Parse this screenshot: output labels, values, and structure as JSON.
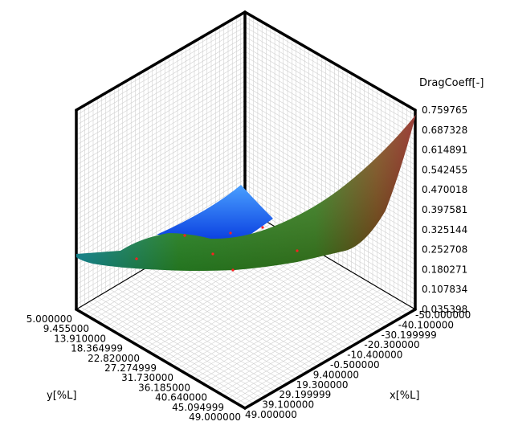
{
  "chart_data": {
    "type": "surface",
    "zlabel": "DragCoeff[-]",
    "xlabel": "x[%L]",
    "ylabel": "y[%L]",
    "z_ticks": [
      "0.759765",
      "0.687328",
      "0.614891",
      "0.542455",
      "0.470018",
      "0.397581",
      "0.325144",
      "0.252708",
      "0.180271",
      "0.107834",
      "0.035398"
    ],
    "x_ticks": [
      "-50.000000",
      "-40.100000",
      "-30.199999",
      "-20.300000",
      "-10.400000",
      "-0.500000",
      "9.400000",
      "19.300000",
      "29.199999",
      "39.100000",
      "49.000000"
    ],
    "y_ticks": [
      "5.000000",
      "9.455000",
      "13.910000",
      "18.364999",
      "22.820000",
      "27.274999",
      "31.730000",
      "36.185000",
      "40.640000",
      "45.094999",
      "49.000000"
    ],
    "zlim": [
      0.035398,
      0.759765
    ],
    "xlim": [
      -50,
      49
    ],
    "ylim": [
      5,
      49
    ],
    "grid": true,
    "colors": {
      "low": "#1a55ff",
      "mid_low": "#1aa5a0",
      "mid": "#2f9a2a",
      "high": "#8a1a10",
      "points": "#ff2020"
    }
  }
}
